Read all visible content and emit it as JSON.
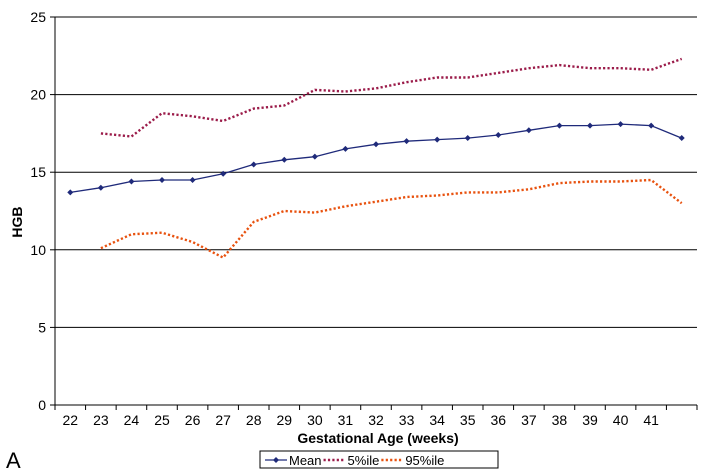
{
  "panel_label": "A",
  "chart_data": {
    "type": "line",
    "title": "",
    "xlabel": "Gestational Age (weeks)",
    "ylabel": "HGB",
    "categories": [
      "22",
      "23",
      "24",
      "25",
      "26",
      "27",
      "28",
      "29",
      "30",
      "31",
      "32",
      "33",
      "34",
      "35",
      "36",
      "37",
      "38",
      "39",
      "40",
      "41"
    ],
    "ylim": [
      0,
      25
    ],
    "yticks": [
      0,
      5,
      10,
      15,
      20,
      25
    ],
    "grid": "horizontal",
    "legend_position": "bottom",
    "series": [
      {
        "name": "Mean",
        "color": "#1f2a7a",
        "style": "solid-with-markers",
        "x": [
          21.5,
          22.5,
          23.5,
          24.5,
          25.5,
          26.5,
          27.5,
          28.5,
          29.5,
          30.5,
          31.5,
          32.5,
          33.5,
          34.5,
          35.5,
          36.5,
          37.5,
          38.5,
          39.5,
          40.5,
          41.5
        ],
        "values": [
          13.7,
          14.0,
          14.4,
          14.5,
          14.5,
          14.9,
          15.5,
          15.8,
          16.0,
          16.5,
          16.8,
          17.0,
          17.1,
          17.2,
          17.4,
          17.7,
          18.0,
          18.0,
          18.1,
          18.0,
          17.2
        ]
      },
      {
        "name": "5%ile",
        "color": "#9b1c4a",
        "style": "dotted",
        "x": [
          22.5,
          23.5,
          24.5,
          25.5,
          26.5,
          27.5,
          28.5,
          29.5,
          30.5,
          31.5,
          32.5,
          33.5,
          34.5,
          35.5,
          36.5,
          37.5,
          38.5,
          39.5,
          40.5,
          41.5
        ],
        "values": [
          17.5,
          17.3,
          18.8,
          18.6,
          18.3,
          19.1,
          19.3,
          20.3,
          20.2,
          20.4,
          20.8,
          21.1,
          21.1,
          21.4,
          21.7,
          21.9,
          21.7,
          21.7,
          21.6,
          22.3
        ]
      },
      {
        "name": "95%ile",
        "color": "#e8520f",
        "style": "dotted",
        "x": [
          22.5,
          23.5,
          24.5,
          25.5,
          26.5,
          27.5,
          28.5,
          29.5,
          30.5,
          31.5,
          32.5,
          33.5,
          34.5,
          35.5,
          36.5,
          37.5,
          38.5,
          39.5,
          40.5,
          41.5
        ],
        "values": [
          10.1,
          11.0,
          11.1,
          10.5,
          9.5,
          11.8,
          12.5,
          12.4,
          12.8,
          13.1,
          13.4,
          13.5,
          13.7,
          13.7,
          13.9,
          14.3,
          14.4,
          14.4,
          14.5,
          13.0
        ]
      }
    ]
  }
}
